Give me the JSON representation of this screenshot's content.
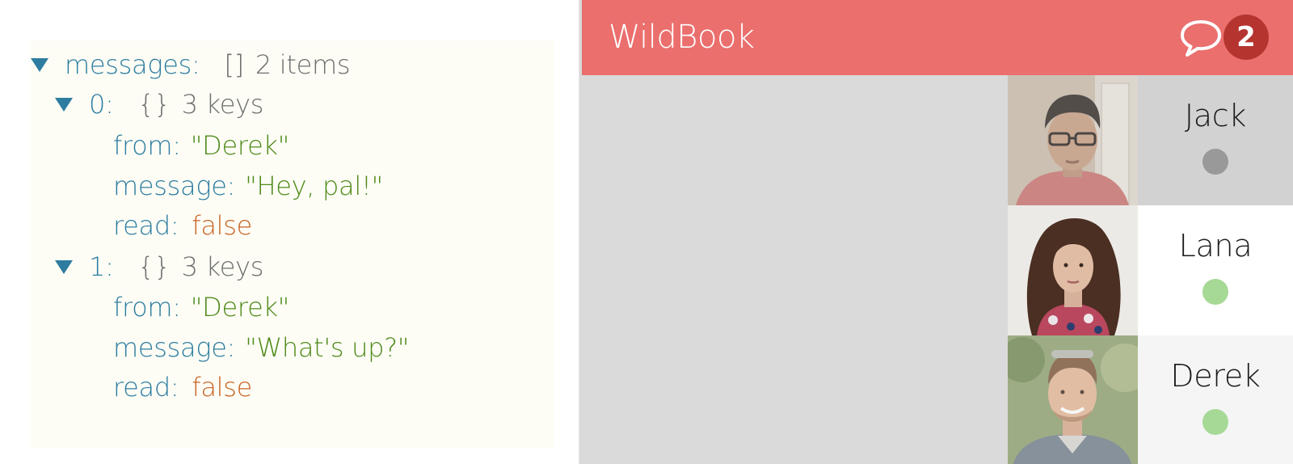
{
  "inspector": {
    "root": {
      "key": "messages",
      "bracket": "[]",
      "count": "2 items"
    },
    "items": [
      {
        "index": "0",
        "bracket": "{}",
        "count": "3 keys",
        "fields": [
          {
            "key": "from",
            "value": "\"Derek\""
          },
          {
            "key": "message",
            "value": "\"Hey, pal!\""
          },
          {
            "key": "read",
            "value": "false"
          }
        ]
      },
      {
        "index": "1",
        "bracket": "{}",
        "count": "3 keys",
        "fields": [
          {
            "key": "from",
            "value": "\"Derek\""
          },
          {
            "key": "message",
            "value": "\"What's up?\""
          },
          {
            "key": "read",
            "value": "false"
          }
        ]
      }
    ]
  },
  "app": {
    "title": "WildBook",
    "chat_icon": "speech-bubble-icon",
    "unread_count": "2",
    "contacts": [
      {
        "name": "Jack",
        "status": "offline",
        "status_color": "#999999"
      },
      {
        "name": "Lana",
        "status": "online",
        "status_color": "#a6d995"
      },
      {
        "name": "Derek",
        "status": "online",
        "status_color": "#a6d995"
      }
    ]
  },
  "colors": {
    "header": "#ea6f6d",
    "badge": "#b53430",
    "json_key": "#2e7da0",
    "json_string": "#4f8a18",
    "json_boolean": "#c86424",
    "json_meta": "#6e6e6e"
  }
}
